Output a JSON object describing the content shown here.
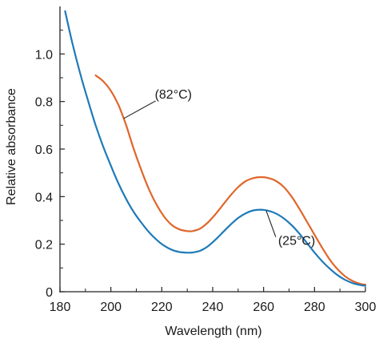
{
  "chart_data": {
    "type": "line",
    "xlabel": "Wavelength (nm)",
    "ylabel": "Relative absorbance",
    "xlim": [
      180,
      300
    ],
    "ylim": [
      0,
      1.2
    ],
    "x_ticks": [
      180,
      200,
      220,
      240,
      260,
      280,
      300
    ],
    "x_tick_labels": [
      "180",
      "200",
      "220",
      "240",
      "260",
      "280",
      "300"
    ],
    "y_ticks": [
      0,
      0.2,
      0.4,
      0.6,
      0.8,
      1.0
    ],
    "y_tick_labels": [
      "0",
      "0.2",
      "0.4",
      "0.6",
      "0.8",
      "1.0"
    ],
    "grid": false,
    "series": [
      {
        "name": "(82°C)",
        "color": "#e0662b",
        "x": [
          194,
          197,
          200,
          203,
          206,
          209,
          212,
          215,
          218,
          221,
          224,
          227,
          230,
          232,
          235,
          238,
          241,
          244,
          247,
          250,
          253,
          256,
          259,
          262,
          265,
          268,
          271,
          274,
          277,
          280,
          283,
          286,
          289,
          292,
          295,
          298,
          300
        ],
        "y": [
          0.91,
          0.885,
          0.845,
          0.785,
          0.7,
          0.6,
          0.51,
          0.43,
          0.365,
          0.315,
          0.28,
          0.262,
          0.255,
          0.255,
          0.265,
          0.29,
          0.325,
          0.365,
          0.405,
          0.44,
          0.465,
          0.478,
          0.482,
          0.478,
          0.465,
          0.44,
          0.4,
          0.35,
          0.295,
          0.24,
          0.185,
          0.135,
          0.095,
          0.065,
          0.045,
          0.033,
          0.03
        ]
      },
      {
        "name": "(25°C)",
        "color": "#1f7ab8",
        "x": [
          182,
          185,
          188,
          191,
          194,
          197,
          200,
          203,
          206,
          209,
          212,
          215,
          218,
          221,
          224,
          227,
          230,
          232,
          235,
          238,
          241,
          244,
          247,
          250,
          253,
          256,
          259,
          262,
          265,
          268,
          271,
          274,
          277,
          280,
          283,
          286,
          289,
          292,
          295,
          298,
          300
        ],
        "y": [
          1.18,
          1.04,
          0.915,
          0.805,
          0.7,
          0.61,
          0.53,
          0.455,
          0.39,
          0.335,
          0.29,
          0.25,
          0.218,
          0.193,
          0.176,
          0.167,
          0.164,
          0.165,
          0.172,
          0.19,
          0.218,
          0.25,
          0.282,
          0.31,
          0.33,
          0.342,
          0.345,
          0.34,
          0.328,
          0.308,
          0.28,
          0.245,
          0.205,
          0.165,
          0.128,
          0.097,
          0.07,
          0.05,
          0.036,
          0.028,
          0.025
        ]
      }
    ],
    "annotations": [
      {
        "text": "(82°C)",
        "series": 0,
        "at_x": 205
      },
      {
        "text": "(25°C)",
        "series": 1,
        "at_x": 261
      }
    ]
  }
}
